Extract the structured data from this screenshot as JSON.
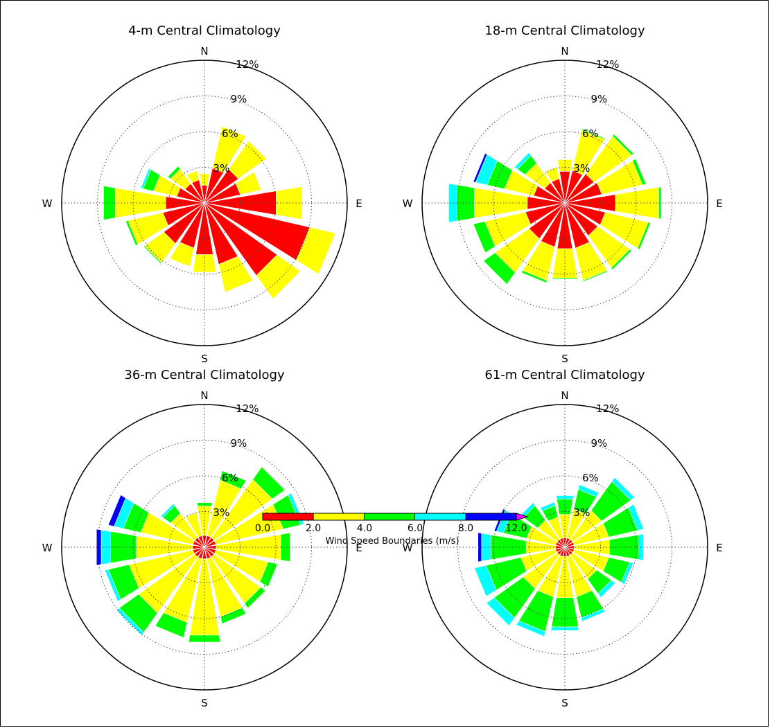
{
  "colors": {
    "bins": [
      "#ff0000",
      "#ffff00",
      "#00ff00",
      "#00ffff",
      "#0000ff",
      "#ff00ff"
    ],
    "ring": "#000000",
    "grid": "#444444"
  },
  "compass": {
    "n": "N",
    "e": "E",
    "s": "S",
    "w": "W"
  },
  "ring_labels": [
    "3%",
    "6%",
    "9%",
    "12%"
  ],
  "colorbar": {
    "ticks": [
      "0.0",
      "2.0",
      "4.0",
      "6.0",
      "8.0",
      "12.0"
    ],
    "label": "Wind Speed Boundaries (m/s)"
  },
  "chart_data": [
    {
      "type": "wind-rose",
      "title": "4-m Central Climatology",
      "rmax": 12,
      "directions_deg": [
        0,
        22.5,
        45,
        67.5,
        90,
        112.5,
        135,
        157.5,
        180,
        202.5,
        225,
        247.5,
        270,
        292.5,
        315,
        337.5
      ],
      "bins": [
        "0.0-2.0",
        "2.0-4.0",
        "4.0-6.0",
        "6.0-8.0",
        "8.0-12.0",
        ">12.0"
      ],
      "stacks": [
        [
          1.5,
          1.0,
          0,
          0,
          0,
          0
        ],
        [
          3.0,
          3.6,
          0,
          0,
          0,
          0
        ],
        [
          3.5,
          2.9,
          0,
          0,
          0,
          0
        ],
        [
          3.1,
          1.8,
          0,
          0,
          0,
          0
        ],
        [
          6.1,
          2.2,
          0,
          0,
          0,
          0
        ],
        [
          9.1,
          2.2,
          0,
          0,
          0,
          0
        ],
        [
          7.5,
          2.4,
          0,
          0,
          0,
          0
        ],
        [
          5.3,
          2.4,
          0,
          0,
          0,
          0
        ],
        [
          4.4,
          1.5,
          0,
          0,
          0,
          0
        ],
        [
          3.9,
          1.6,
          0,
          0,
          0,
          0
        ],
        [
          4.2,
          2.0,
          0.1,
          0,
          0,
          0
        ],
        [
          3.6,
          3.0,
          0.2,
          0,
          0,
          0
        ],
        [
          3.3,
          4.3,
          1.0,
          0,
          0,
          0
        ],
        [
          2.4,
          2.0,
          0.9,
          0.2,
          0,
          0
        ],
        [
          2.0,
          1.5,
          0.3,
          0,
          0,
          0
        ],
        [
          2.0,
          0.8,
          0,
          0,
          0,
          0
        ]
      ]
    },
    {
      "type": "wind-rose",
      "title": "18-m Central Climatology",
      "rmax": 12,
      "directions_deg": [
        0,
        22.5,
        45,
        67.5,
        90,
        112.5,
        135,
        157.5,
        180,
        202.5,
        225,
        247.5,
        270,
        292.5,
        315,
        337.5
      ],
      "bins": [
        "0.0-2.0",
        "2.0-4.0",
        "4.0-6.0",
        "6.0-8.0",
        "8.0-12.0",
        ">12.0"
      ],
      "stacks": [
        [
          2.7,
          1.0,
          0,
          0,
          0,
          0
        ],
        [
          2.8,
          3.5,
          0.1,
          0,
          0,
          0
        ],
        [
          3.0,
          3.9,
          0.2,
          0,
          0,
          0
        ],
        [
          3.2,
          3.5,
          0.3,
          0,
          0,
          0
        ],
        [
          4.3,
          3.7,
          0.2,
          0,
          0,
          0
        ],
        [
          3.5,
          3.7,
          0.2,
          0,
          0,
          0
        ],
        [
          3.4,
          3.3,
          0.2,
          0,
          0,
          0
        ],
        [
          3.9,
          2.8,
          0.1,
          0,
          0,
          0
        ],
        [
          3.9,
          2.5,
          0.1,
          0,
          0,
          0
        ],
        [
          3.8,
          2.9,
          0.2,
          0,
          0,
          0
        ],
        [
          3.7,
          3.5,
          1.2,
          0,
          0,
          0
        ],
        [
          3.4,
          3.5,
          1.0,
          0,
          0,
          0
        ],
        [
          3.2,
          4.5,
          1.5,
          0.7,
          0,
          0
        ],
        [
          2.7,
          2.5,
          1.5,
          1.0,
          0.2,
          0
        ],
        [
          2.1,
          2.0,
          0.8,
          0.3,
          0,
          0
        ],
        [
          2.1,
          1.0,
          0,
          0,
          0,
          0
        ]
      ]
    },
    {
      "type": "wind-rose",
      "title": "36-m Central Climatology",
      "rmax": 12,
      "directions_deg": [
        0,
        22.5,
        45,
        67.5,
        90,
        112.5,
        135,
        157.5,
        180,
        202.5,
        225,
        247.5,
        270,
        292.5,
        315,
        337.5
      ],
      "bins": [
        "0.0-2.0",
        "2.0-4.0",
        "4.0-6.0",
        "6.0-8.0",
        "8.0-12.0",
        ">12.0"
      ],
      "stacks": [
        [
          1.0,
          2.5,
          0.3,
          0,
          0,
          0
        ],
        [
          1.0,
          4.8,
          0.8,
          0,
          0,
          0
        ],
        [
          1.0,
          6.0,
          1.3,
          0,
          0,
          0
        ],
        [
          1.0,
          5.8,
          1.5,
          0.3,
          0,
          0
        ],
        [
          1.0,
          5.5,
          0.8,
          0,
          0,
          0
        ],
        [
          1.0,
          4.5,
          0.8,
          0,
          0,
          0
        ],
        [
          1.0,
          4.8,
          0.5,
          0,
          0,
          0
        ],
        [
          1.0,
          5.0,
          0.6,
          0,
          0,
          0
        ],
        [
          1.0,
          6.5,
          0.6,
          0,
          0,
          0
        ],
        [
          1.0,
          5.5,
          1.3,
          0,
          0,
          0
        ],
        [
          1.0,
          5.8,
          2.0,
          0.3,
          0,
          0
        ],
        [
          1.0,
          5.5,
          1.8,
          0.3,
          0,
          0
        ],
        [
          1.0,
          4.8,
          2.2,
          0.8,
          0.4,
          0
        ],
        [
          1.0,
          4.5,
          1.5,
          0.8,
          0.5,
          0
        ],
        [
          1.0,
          2.5,
          0.8,
          0.2,
          0,
          0
        ],
        [
          1.0,
          2.0,
          0,
          0,
          0,
          0
        ]
      ]
    },
    {
      "type": "wind-rose",
      "title": "61-m Central Climatology",
      "rmax": 12,
      "directions_deg": [
        0,
        22.5,
        45,
        67.5,
        90,
        112.5,
        135,
        157.5,
        180,
        202.5,
        225,
        247.5,
        270,
        292.5,
        315,
        337.5
      ],
      "bins": [
        "0.0-2.0",
        "2.0-4.0",
        "4.0-6.0",
        "6.0-8.0",
        "8.0-12.0",
        ">12.0"
      ],
      "stacks": [
        [
          0.8,
          2.0,
          1.3,
          0.3,
          0,
          0
        ],
        [
          0.8,
          2.5,
          1.7,
          0.4,
          0,
          0
        ],
        [
          0.8,
          3.0,
          3.0,
          0.4,
          0,
          0
        ],
        [
          0.8,
          3.0,
          2.5,
          0.5,
          0,
          0
        ],
        [
          0.8,
          3.0,
          2.5,
          0.4,
          0,
          0
        ],
        [
          0.8,
          3.0,
          1.8,
          0.3,
          0,
          0
        ],
        [
          0.8,
          2.5,
          1.5,
          0.4,
          0,
          0
        ],
        [
          0.8,
          3.5,
          1.8,
          0.3,
          0,
          0
        ],
        [
          0.8,
          3.5,
          2.5,
          0.3,
          0,
          0
        ],
        [
          0.8,
          3.5,
          3.0,
          0.4,
          0,
          0
        ],
        [
          0.8,
          3.5,
          3.0,
          0.8,
          0,
          0
        ],
        [
          0.8,
          3.0,
          3.0,
          1.0,
          0,
          0
        ],
        [
          0.8,
          2.5,
          3.0,
          0.8,
          0.3,
          0
        ],
        [
          0.8,
          2.5,
          2.0,
          0.6,
          0.2,
          0
        ],
        [
          0.8,
          2.0,
          1.5,
          0.3,
          0,
          0
        ],
        [
          0.8,
          1.8,
          1.0,
          0.3,
          0,
          0
        ]
      ]
    }
  ]
}
